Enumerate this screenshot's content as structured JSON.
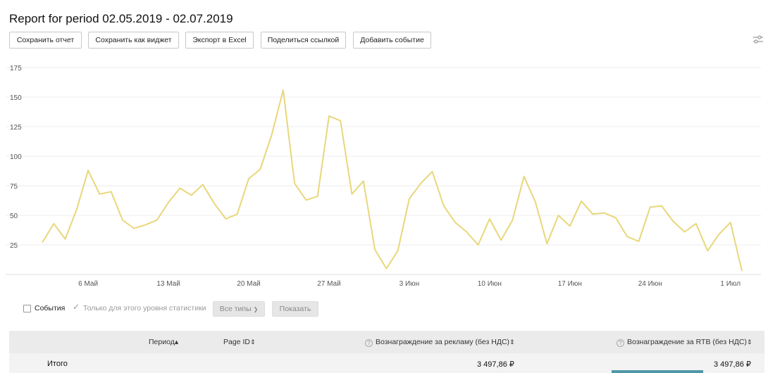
{
  "report": {
    "title": "Report for period 02.05.2019 - 02.07.2019"
  },
  "toolbar": {
    "save_report": "Сохранить отчет",
    "save_widget": "Сохранить как виджет",
    "export_excel": "Экспорт в Excel",
    "share_link": "Поделиться ссылкой",
    "add_event": "Добавить событие"
  },
  "icons": {
    "settings": "sliders-icon",
    "checkbox": "checkbox-icon",
    "check": "check-icon",
    "help": "question-icon",
    "sort": "sort-icon"
  },
  "colors": {
    "line": "#e8d77a",
    "grid": "#ececec",
    "accent_bar": "#4f97a8"
  },
  "chart_data": {
    "type": "line",
    "x_tick_labels": [
      "6 Май",
      "13 Май",
      "20 Май",
      "27 Май",
      "3 Июн",
      "10 Июн",
      "17 Июн",
      "24 Июн",
      "1 Июл"
    ],
    "y_ticks": [
      25,
      50,
      75,
      100,
      125,
      150,
      175
    ],
    "ylim": [
      0,
      175
    ],
    "grid": true,
    "x": [
      "02.05.2019",
      "03.05.2019",
      "04.05.2019",
      "05.05.2019",
      "06.05.2019",
      "07.05.2019",
      "08.05.2019",
      "09.05.2019",
      "10.05.2019",
      "11.05.2019",
      "12.05.2019",
      "13.05.2019",
      "14.05.2019",
      "15.05.2019",
      "16.05.2019",
      "17.05.2019",
      "18.05.2019",
      "19.05.2019",
      "20.05.2019",
      "21.05.2019",
      "22.05.2019",
      "23.05.2019",
      "24.05.2019",
      "25.05.2019",
      "26.05.2019",
      "27.05.2019",
      "28.05.2019",
      "29.05.2019",
      "30.05.2019",
      "31.05.2019",
      "01.06.2019",
      "02.06.2019",
      "03.06.2019",
      "04.06.2019",
      "05.06.2019",
      "06.06.2019",
      "07.06.2019",
      "08.06.2019",
      "09.06.2019",
      "10.06.2019",
      "11.06.2019",
      "12.06.2019",
      "13.06.2019",
      "14.06.2019",
      "15.06.2019",
      "16.06.2019",
      "17.06.2019",
      "18.06.2019",
      "19.06.2019",
      "20.06.2019",
      "21.06.2019",
      "22.06.2019",
      "23.06.2019",
      "24.06.2019",
      "25.06.2019",
      "26.06.2019",
      "27.06.2019",
      "28.06.2019",
      "29.06.2019",
      "30.06.2019",
      "01.07.2019",
      "02.07.2019"
    ],
    "series": [
      {
        "values": [
          27,
          43,
          30,
          55,
          88,
          68,
          70,
          46,
          39,
          42,
          46,
          61,
          73,
          67,
          76,
          60,
          47,
          51,
          81,
          89,
          118,
          156,
          77,
          63,
          66,
          134,
          130,
          68,
          79,
          21,
          5,
          20,
          64,
          77,
          87,
          58,
          44,
          36,
          25,
          47,
          29,
          46,
          83,
          61,
          26,
          50,
          41,
          62,
          51,
          52,
          48,
          32,
          28,
          57,
          58,
          45,
          36,
          43,
          20,
          34,
          44,
          3
        ]
      }
    ]
  },
  "filters": {
    "events_label": "События",
    "only_level_label": "Только для этого уровня статистики",
    "types_select": "Все типы",
    "show_button": "Показать"
  },
  "table": {
    "headers": {
      "period": "Период",
      "page_id": "Page ID",
      "reward_ads": "Вознаграждение за рекламу (без НДС)",
      "reward_rtb": "Вознаграждение за RTB (без НДС)"
    },
    "sort_asc": "▴",
    "sort_both": "⇕",
    "total": {
      "label": "Итого",
      "reward_ads": "3 497,86 ₽",
      "reward_rtb": "3 497,86 ₽"
    }
  }
}
